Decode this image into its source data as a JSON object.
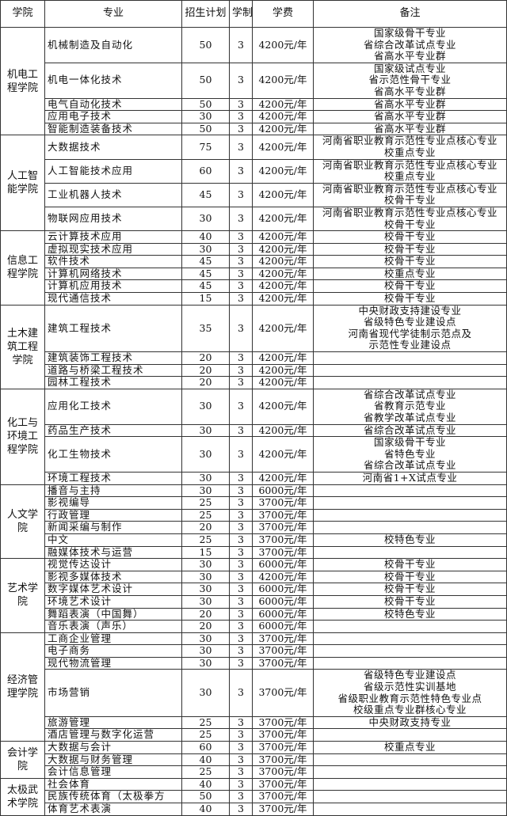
{
  "headers": [
    "学院",
    "专业",
    "招生计划",
    "学制",
    "学费",
    "备注"
  ],
  "colleges": [
    {
      "name": "机电工程学院",
      "majors": [
        {
          "name": "机械制造及自动化",
          "plan": "50",
          "years": "3",
          "fee": "4200元/年",
          "note": [
            "国家级骨干专业",
            "省综合改革试点专业",
            "省高水平专业群"
          ]
        },
        {
          "name": "机电一体化技术",
          "plan": "50",
          "years": "3",
          "fee": "4200元/年",
          "note": [
            "国家级试点专业",
            "省示范性骨干专业",
            "省高水平专业群"
          ]
        },
        {
          "name": "电气自动化技术",
          "plan": "50",
          "years": "3",
          "fee": "4200元/年",
          "note": [
            "省高水平专业群"
          ]
        },
        {
          "name": "应用电子技术",
          "plan": "30",
          "years": "3",
          "fee": "4200元/年",
          "note": [
            "省高水平专业群"
          ]
        },
        {
          "name": "智能制造装备技术",
          "plan": "50",
          "years": "3",
          "fee": "4200元/年",
          "note": [
            "省高水平专业群"
          ]
        }
      ]
    },
    {
      "name": "人工智能学院",
      "majors": [
        {
          "name": "大数据技术",
          "plan": "75",
          "years": "3",
          "fee": "4200元/年",
          "note": [
            "河南省职业教育示范性专业点核心专业",
            "校重点专业"
          ]
        },
        {
          "name": "人工智能技术应用",
          "plan": "60",
          "years": "3",
          "fee": "4200元/年",
          "note": [
            "河南省职业教育示范性专业点核心专业",
            "校重点专业"
          ]
        },
        {
          "name": "工业机器人技术",
          "plan": "45",
          "years": "3",
          "fee": "4200元/年",
          "note": [
            "河南省职业教育示范性专业点核心专业",
            "校骨干专业"
          ]
        },
        {
          "name": "物联网应用技术",
          "plan": "30",
          "years": "3",
          "fee": "4200元/年",
          "note": [
            "河南省职业教育示范性专业点核心专业",
            "校骨干专业"
          ]
        }
      ]
    },
    {
      "name": "信息工程学院",
      "majors": [
        {
          "name": "云计算技术应用",
          "plan": "40",
          "years": "3",
          "fee": "4200元/年",
          "note": [
            "校骨干专业"
          ]
        },
        {
          "name": "虚拟现实技术应用",
          "plan": "30",
          "years": "3",
          "fee": "4200元/年",
          "note": [
            "校骨干专业"
          ]
        },
        {
          "name": "软件技术",
          "plan": "45",
          "years": "3",
          "fee": "4200元/年",
          "note": [
            "校骨干专业"
          ]
        },
        {
          "name": "计算机网络技术",
          "plan": "45",
          "years": "3",
          "fee": "4200元/年",
          "note": [
            "校重点专业"
          ]
        },
        {
          "name": "计算机应用技术",
          "plan": "45",
          "years": "3",
          "fee": "4200元/年",
          "note": [
            "校骨干专业"
          ]
        },
        {
          "name": "现代通信技术",
          "plan": "15",
          "years": "3",
          "fee": "4200元/年",
          "note": [
            "校骨干专业"
          ]
        }
      ]
    },
    {
      "name": "土木建筑工程学院",
      "majors": [
        {
          "name": "建筑工程技术",
          "plan": "35",
          "years": "3",
          "fee": "4200元/年",
          "note": [
            "中央财政支持建设专业",
            "省级特色专业建设点",
            "河南省现代学徒制示范点及",
            "示范性专业建设点"
          ]
        },
        {
          "name": "建筑装饰工程技术",
          "plan": "20",
          "years": "3",
          "fee": "4200元/年",
          "note": []
        },
        {
          "name": "道路与桥梁工程技术",
          "plan": "20",
          "years": "3",
          "fee": "4200元/年",
          "note": []
        },
        {
          "name": "园林工程技术",
          "plan": "20",
          "years": "3",
          "fee": "4200元/年",
          "note": []
        }
      ]
    },
    {
      "name": "化工与环境工程学院",
      "majors": [
        {
          "name": "应用化工技术",
          "plan": "30",
          "years": "3",
          "fee": "4200元/年",
          "note": [
            "省综合改革试点专业",
            "省教育示范专业",
            "省教学改革试点专业"
          ]
        },
        {
          "name": "药品生产技术",
          "plan": "30",
          "years": "3",
          "fee": "4200元/年",
          "note": [
            "省综合改革试点专业"
          ]
        },
        {
          "name": "化工生物技术",
          "plan": "30",
          "years": "3",
          "fee": "4200元/年",
          "note": [
            "国家级骨干专业",
            "省特色专业",
            "省综合改革试点专业"
          ]
        },
        {
          "name": "环境工程技术",
          "plan": "30",
          "years": "3",
          "fee": "4200元/年",
          "note": [
            "河南省1+X试点专业"
          ]
        }
      ]
    },
    {
      "name": "人文学院",
      "majors": [
        {
          "name": "播音与主持",
          "plan": "30",
          "years": "3",
          "fee": "6000元/年",
          "note": []
        },
        {
          "name": "影视编导",
          "plan": "25",
          "years": "3",
          "fee": "3700元/年",
          "note": []
        },
        {
          "name": "行政管理",
          "plan": "25",
          "years": "3",
          "fee": "3700元/年",
          "note": []
        },
        {
          "name": "新闻采编与制作",
          "plan": "20",
          "years": "3",
          "fee": "3700元/年",
          "note": []
        },
        {
          "name": "中文",
          "plan": "25",
          "years": "3",
          "fee": "3700元/年",
          "note": [
            "校特色专业"
          ]
        },
        {
          "name": "融媒体技术与运营",
          "plan": "15",
          "years": "3",
          "fee": "3700元/年",
          "note": []
        }
      ]
    },
    {
      "name": "艺术学院",
      "majors": [
        {
          "name": "视觉传达设计",
          "plan": "30",
          "years": "3",
          "fee": "6000元/年",
          "note": [
            "校骨干专业"
          ]
        },
        {
          "name": "影视多媒体技术",
          "plan": "30",
          "years": "3",
          "fee": "4200元/年",
          "note": [
            "校骨干专业"
          ]
        },
        {
          "name": "数字媒体艺术设计",
          "plan": "30",
          "years": "3",
          "fee": "6000元/年",
          "note": [
            "校骨干专业"
          ]
        },
        {
          "name": "环境艺术设计",
          "plan": "30",
          "years": "3",
          "fee": "6000元/年",
          "note": [
            "校骨干专业"
          ]
        },
        {
          "name": "舞蹈表演（中国舞）",
          "plan": "20",
          "years": "3",
          "fee": "6000元/年",
          "note": [
            "校特色专业"
          ]
        },
        {
          "name": "音乐表演（声乐）",
          "plan": "20",
          "years": "3",
          "fee": "6000元/年",
          "note": []
        }
      ]
    },
    {
      "name": "经济管理学院",
      "majors": [
        {
          "name": "工商企业管理",
          "plan": "30",
          "years": "3",
          "fee": "3700元/年",
          "note": []
        },
        {
          "name": "电子商务",
          "plan": "30",
          "years": "3",
          "fee": "3700元/年",
          "note": []
        },
        {
          "name": "现代物流管理",
          "plan": "30",
          "years": "3",
          "fee": "3700元/年",
          "note": []
        },
        {
          "name": "市场营销",
          "plan": "30",
          "years": "3",
          "fee": "3700元/年",
          "note": [
            "省级特色专业建设点",
            "省级示范性实训基地",
            "省级职业教育示范性特色专业点",
            "校级重点专业群核心专业"
          ]
        },
        {
          "name": "旅游管理",
          "plan": "25",
          "years": "3",
          "fee": "3700元/年",
          "note": [
            "中央财政支持专业"
          ]
        },
        {
          "name": "酒店管理与数字化运营",
          "plan": "25",
          "years": "3",
          "fee": "3700元/年",
          "note": []
        }
      ]
    },
    {
      "name": "会计学院",
      "majors": [
        {
          "name": "大数据与会计",
          "plan": "60",
          "years": "3",
          "fee": "3700元/年",
          "note": [
            "校重点专业"
          ]
        },
        {
          "name": "大数据与财务管理",
          "plan": "40",
          "years": "3",
          "fee": "3700元/年",
          "note": []
        },
        {
          "name": "会计信息管理",
          "plan": "25",
          "years": "3",
          "fee": "3700元/年",
          "note": []
        }
      ]
    },
    {
      "name": "太极武术学院",
      "majors": [
        {
          "name": "社会体育",
          "plan": "40",
          "years": "3",
          "fee": "3700元/年",
          "note": []
        },
        {
          "name": "民族传统体育（太极拳方",
          "plan": "50",
          "years": "3",
          "fee": "3700元/年",
          "note": []
        },
        {
          "name": "体育艺术表演",
          "plan": "40",
          "years": "3",
          "fee": "3700元/年",
          "note": []
        }
      ]
    }
  ]
}
